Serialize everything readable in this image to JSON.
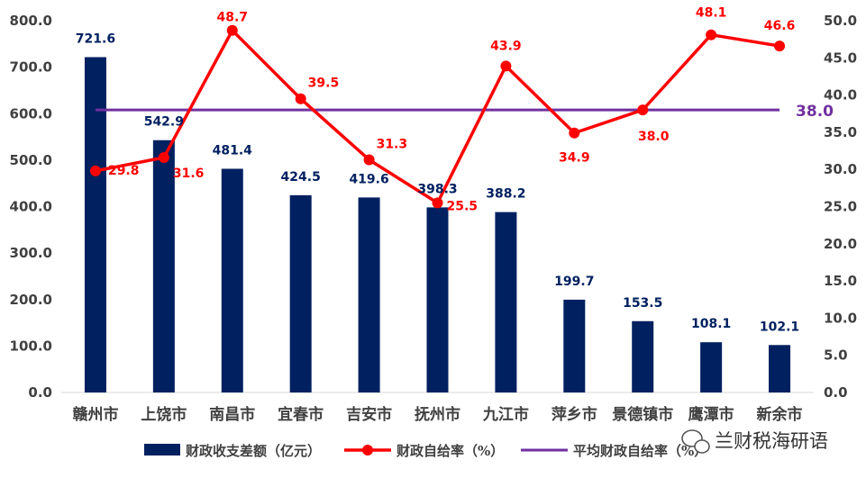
{
  "chart_data": {
    "type": "bar",
    "categories": [
      "赣州市",
      "上饶市",
      "南昌市",
      "宜春市",
      "吉安市",
      "抚州市",
      "九江市",
      "萍乡市",
      "景德镇市",
      "鹰潭市",
      "新余市"
    ],
    "series": [
      {
        "name": "财政收支差额（亿元）",
        "type": "bar",
        "axis": "left",
        "values": [
          721.6,
          542.9,
          481.4,
          424.5,
          419.6,
          398.3,
          388.2,
          199.7,
          153.5,
          108.1,
          102.1
        ],
        "labels": [
          "721.6",
          "542.9",
          "481.4",
          "424.5",
          "419.6",
          "398.3",
          "388.2",
          "199.7",
          "153.5",
          "108.1",
          "102.1"
        ],
        "color": "#002060"
      },
      {
        "name": "财政自给率（%）",
        "type": "line",
        "axis": "right",
        "values": [
          29.8,
          31.6,
          48.7,
          39.5,
          31.3,
          25.5,
          43.9,
          34.9,
          38.0,
          48.1,
          46.6
        ],
        "labels": [
          "29.8",
          "31.6",
          "48.7",
          "39.5",
          "31.3",
          "25.5",
          "43.9",
          "34.9",
          "38.0",
          "48.1",
          "46.6"
        ],
        "color": "#ff0000"
      },
      {
        "name": "平均财政自给率（%）",
        "type": "line",
        "axis": "right",
        "values": [
          38.0,
          38.0,
          38.0,
          38.0,
          38.0,
          38.0,
          38.0,
          38.0,
          38.0,
          38.0,
          38.0
        ],
        "label": "38.0",
        "color": "#7030a0"
      }
    ],
    "y_left": {
      "range": [
        0,
        800
      ],
      "ticks": [
        "0.0",
        "100.0",
        "200.0",
        "300.0",
        "400.0",
        "500.0",
        "600.0",
        "700.0",
        "800.0"
      ]
    },
    "y_right": {
      "range": [
        0,
        50
      ],
      "ticks": [
        "0.0",
        "5.0",
        "10.0",
        "15.0",
        "20.0",
        "25.0",
        "30.0",
        "35.0",
        "40.0",
        "45.0",
        "50.0"
      ]
    },
    "grid": false,
    "legend_position": "bottom"
  },
  "watermark": {
    "text": "兰财税海研语",
    "icon": "wechat-icon"
  }
}
